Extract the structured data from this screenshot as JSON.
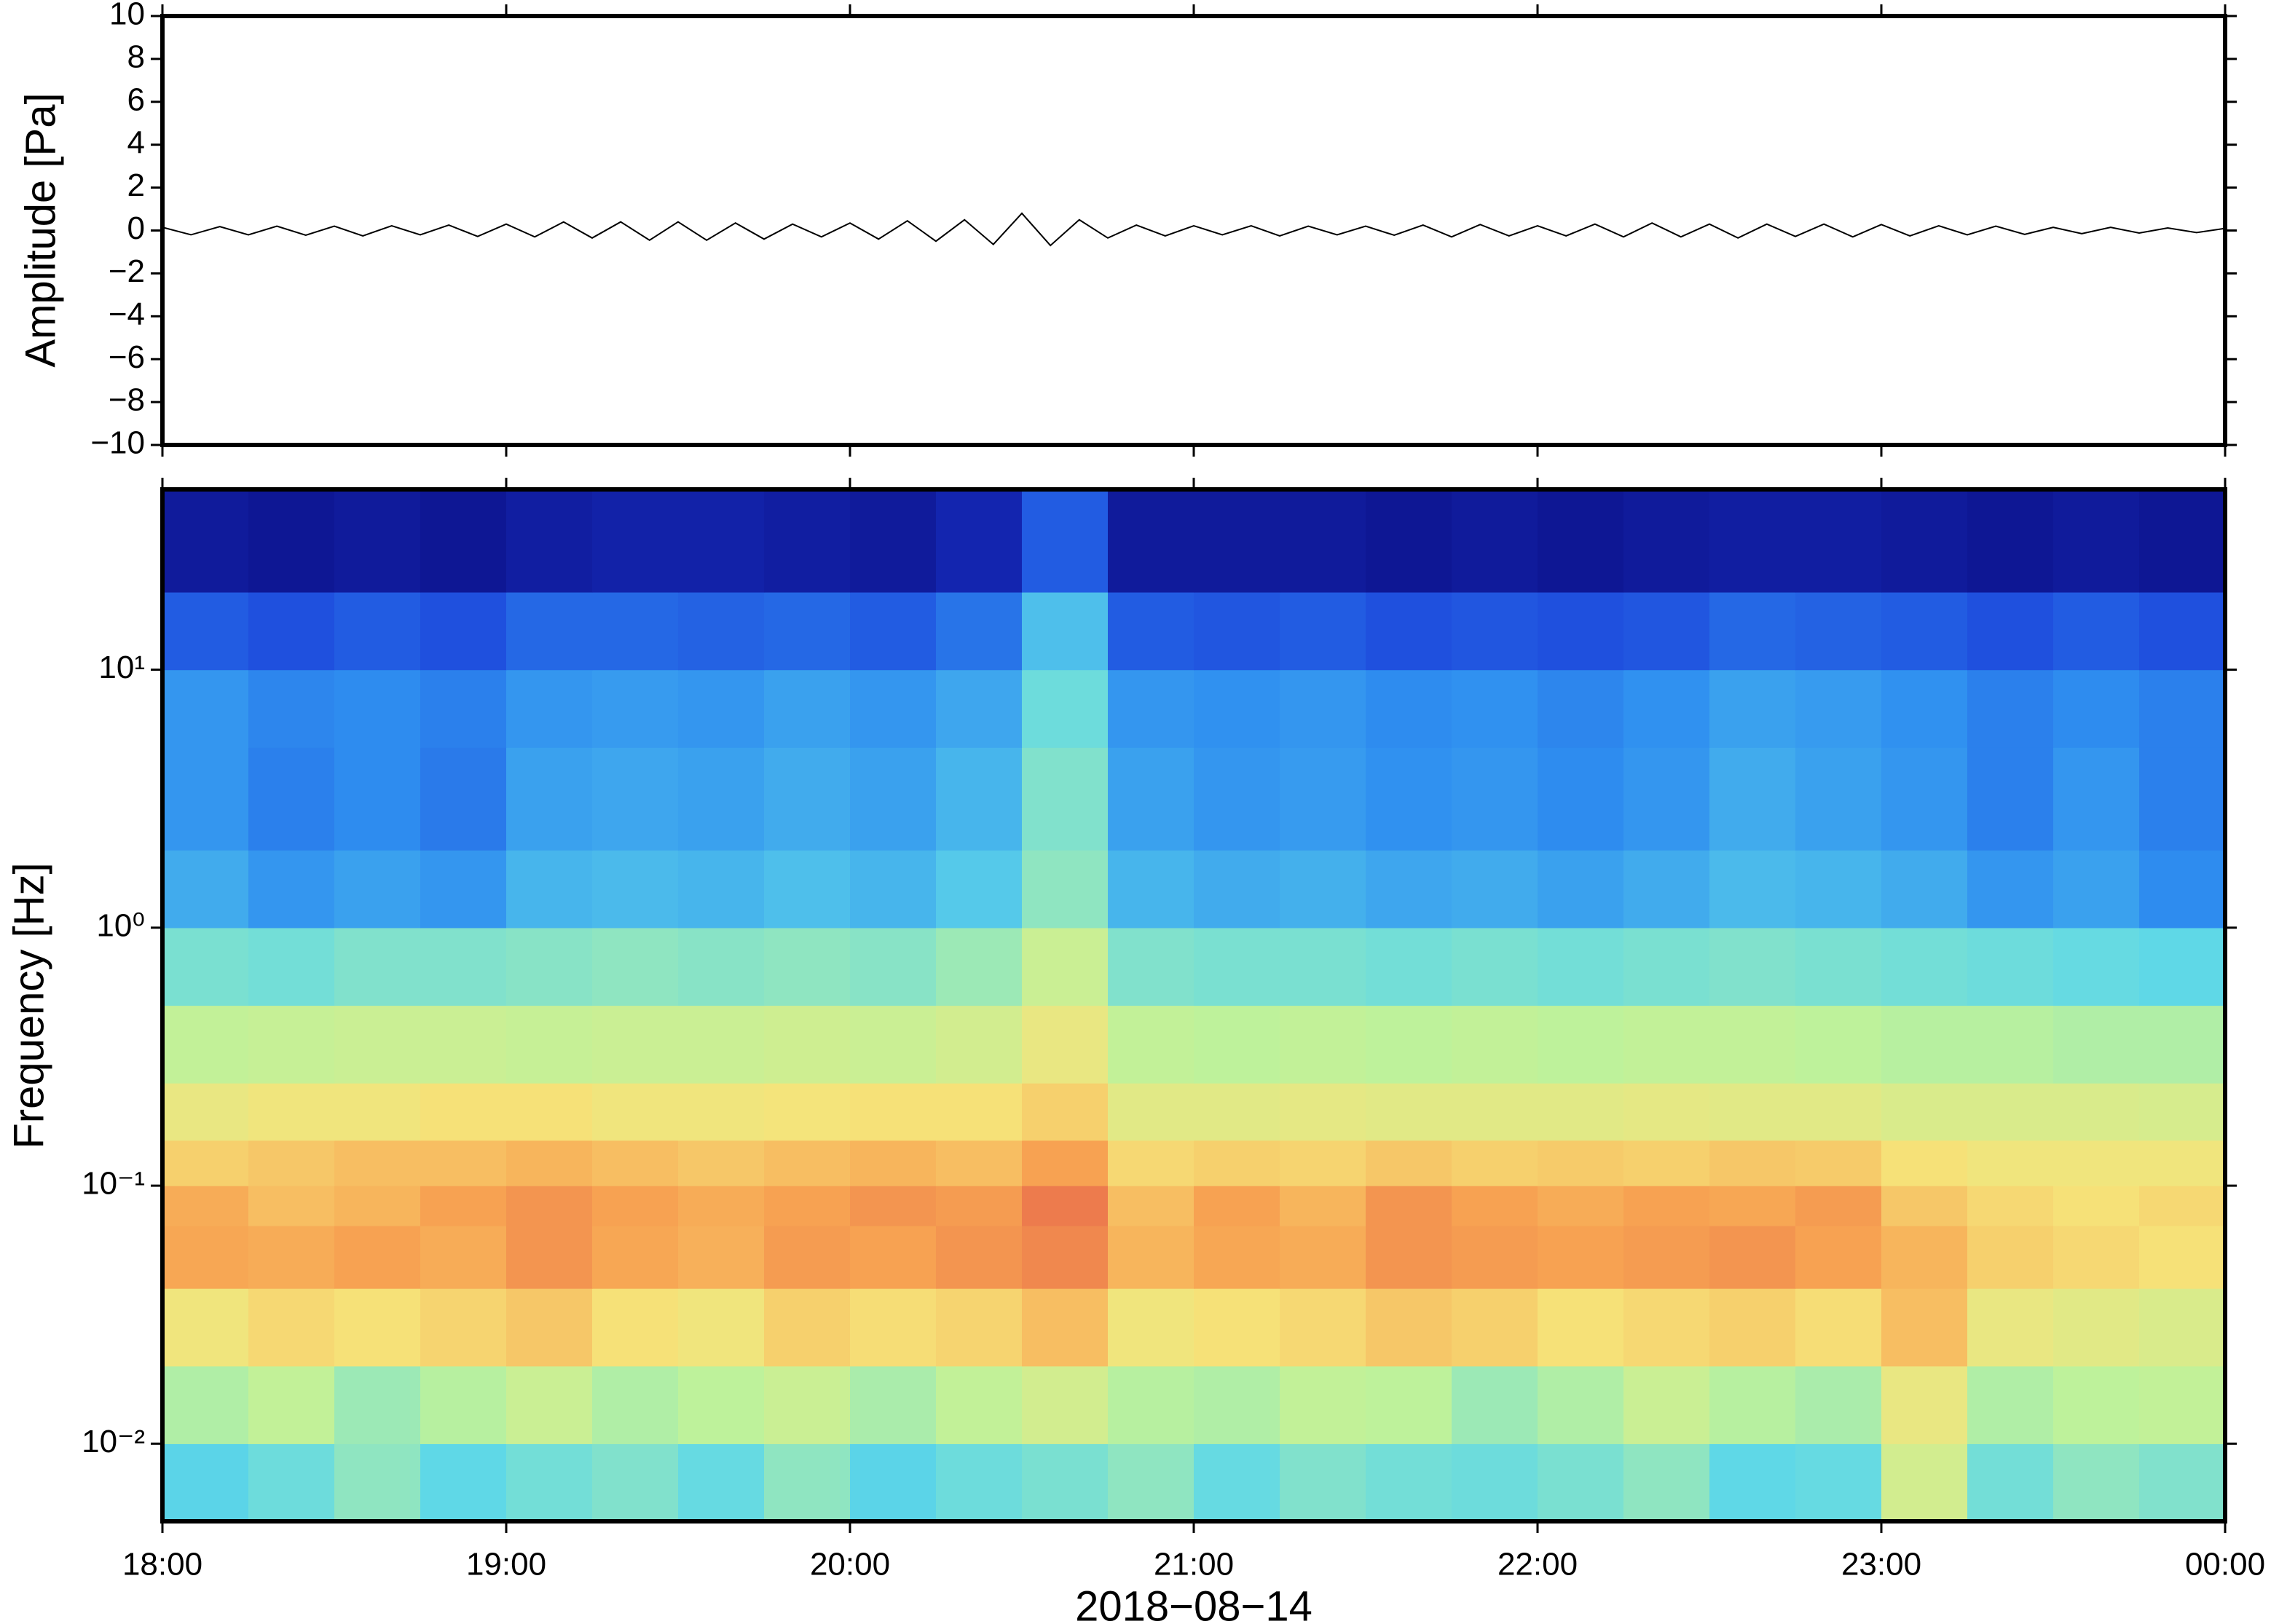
{
  "chart_data": [
    {
      "type": "line",
      "ylabel": "Amplitude [Pa]",
      "color": "#000000",
      "xlim": [
        18,
        24
      ],
      "xticks": [
        18,
        19,
        20,
        21,
        22,
        23,
        24
      ],
      "ylim": [
        -10,
        10
      ],
      "yticks": [
        {
          "value": -10,
          "label": "−10"
        },
        {
          "value": -8,
          "label": "−8"
        },
        {
          "value": -6,
          "label": "−6"
        },
        {
          "value": -4,
          "label": "−4"
        },
        {
          "value": -2,
          "label": "−2"
        },
        0,
        2,
        4,
        6,
        8,
        10
      ],
      "x": [
        18,
        18.083,
        18.167,
        18.25,
        18.333,
        18.417,
        18.5,
        18.583,
        18.667,
        18.75,
        18.833,
        18.917,
        19,
        19.083,
        19.167,
        19.25,
        19.333,
        19.417,
        19.5,
        19.583,
        19.667,
        19.75,
        19.833,
        19.917,
        20,
        20.083,
        20.167,
        20.25,
        20.333,
        20.417,
        20.5,
        20.583,
        20.667,
        20.75,
        20.833,
        20.917,
        21,
        21.083,
        21.167,
        21.25,
        21.333,
        21.417,
        21.5,
        21.583,
        21.667,
        21.75,
        21.833,
        21.917,
        22,
        22.083,
        22.167,
        22.25,
        22.333,
        22.417,
        22.5,
        22.583,
        22.667,
        22.75,
        22.833,
        22.917,
        23,
        23.083,
        23.167,
        23.25,
        23.333,
        23.417,
        23.5,
        23.583,
        23.667,
        23.75,
        23.833,
        23.917,
        24
      ],
      "values": [
        0.15,
        -0.2,
        0.18,
        -0.2,
        0.2,
        -0.22,
        0.2,
        -0.25,
        0.22,
        -0.2,
        0.25,
        -0.28,
        0.3,
        -0.3,
        0.4,
        -0.35,
        0.4,
        -0.45,
        0.4,
        -0.45,
        0.35,
        -0.4,
        0.3,
        -0.3,
        0.35,
        -0.4,
        0.45,
        -0.5,
        0.5,
        -0.65,
        0.8,
        -0.7,
        0.5,
        -0.35,
        0.25,
        -0.25,
        0.22,
        -0.2,
        0.22,
        -0.25,
        0.2,
        -0.2,
        0.2,
        -0.22,
        0.25,
        -0.3,
        0.28,
        -0.25,
        0.22,
        -0.25,
        0.3,
        -0.3,
        0.35,
        -0.3,
        0.3,
        -0.35,
        0.3,
        -0.28,
        0.3,
        -0.3,
        0.28,
        -0.25,
        0.22,
        -0.2,
        0.2,
        -0.18,
        0.15,
        -0.15,
        0.15,
        -0.12,
        0.12,
        -0.1,
        0.1
      ]
    },
    {
      "type": "heatmap",
      "ylabel": "Frequency [Hz]",
      "xlabel": "2018−08−14",
      "log_y": true,
      "colormap": [
        "#0a0a7a",
        "#1a3ad8",
        "#2f8ff0",
        "#5ed8e8",
        "#bff29a",
        "#f6e47a",
        "#f7a452",
        "#e04646"
      ],
      "xlim": [
        18,
        24
      ],
      "xticks": [
        {
          "value": 18,
          "label": "18:00"
        },
        {
          "value": 19,
          "label": "19:00"
        },
        {
          "value": 20,
          "label": "20:00"
        },
        {
          "value": 21,
          "label": "21:00"
        },
        {
          "value": 22,
          "label": "22:00"
        },
        {
          "value": 23,
          "label": "23:00"
        },
        {
          "value": 24,
          "label": "00:00"
        }
      ],
      "ylim": [
        0.005,
        50
      ],
      "yticks": [
        {
          "value": 0.01,
          "label": "10⁻²"
        },
        {
          "value": 0.1,
          "label": "10⁻¹"
        },
        {
          "value": 1,
          "label": "10⁰"
        },
        {
          "value": 10,
          "label": "10¹"
        }
      ],
      "x": [
        18,
        18.25,
        18.5,
        18.75,
        19,
        19.25,
        19.5,
        19.75,
        20,
        20.25,
        20.5,
        20.75,
        21,
        21.25,
        21.5,
        21.75,
        22,
        22.25,
        22.5,
        22.75,
        23,
        23.25,
        23.5,
        23.75,
        24
      ],
      "y": [
        0.005,
        0.01,
        0.02,
        0.04,
        0.07,
        0.1,
        0.15,
        0.25,
        0.5,
        1,
        2,
        5,
        10,
        20,
        50
      ],
      "z": [
        [
          0.42,
          0.45,
          0.5,
          0.43,
          0.46,
          0.48,
          0.44,
          0.5,
          0.42,
          0.45,
          0.47,
          0.5,
          0.44,
          0.48,
          0.46,
          0.45,
          0.47,
          0.5,
          0.43,
          0.44,
          0.62,
          0.46,
          0.5,
          0.48
        ],
        [
          0.55,
          0.58,
          0.52,
          0.56,
          0.6,
          0.55,
          0.57,
          0.6,
          0.54,
          0.58,
          0.62,
          0.56,
          0.55,
          0.58,
          0.57,
          0.52,
          0.55,
          0.6,
          0.56,
          0.54,
          0.68,
          0.55,
          0.57,
          0.58
        ],
        [
          0.7,
          0.74,
          0.72,
          0.75,
          0.78,
          0.72,
          0.7,
          0.76,
          0.73,
          0.75,
          0.8,
          0.7,
          0.72,
          0.74,
          0.78,
          0.76,
          0.72,
          0.74,
          0.76,
          0.73,
          0.8,
          0.68,
          0.66,
          0.64
        ],
        [
          0.85,
          0.84,
          0.86,
          0.84,
          0.88,
          0.85,
          0.83,
          0.87,
          0.86,
          0.88,
          0.9,
          0.82,
          0.85,
          0.84,
          0.88,
          0.87,
          0.86,
          0.87,
          0.88,
          0.86,
          0.82,
          0.76,
          0.74,
          0.72
        ],
        [
          0.84,
          0.8,
          0.82,
          0.86,
          0.88,
          0.86,
          0.84,
          0.86,
          0.88,
          0.87,
          0.92,
          0.8,
          0.86,
          0.82,
          0.88,
          0.86,
          0.84,
          0.86,
          0.85,
          0.87,
          0.78,
          0.74,
          0.72,
          0.74
        ],
        [
          0.76,
          0.78,
          0.8,
          0.8,
          0.82,
          0.8,
          0.78,
          0.8,
          0.82,
          0.8,
          0.86,
          0.74,
          0.76,
          0.75,
          0.78,
          0.76,
          0.77,
          0.76,
          0.78,
          0.77,
          0.72,
          0.7,
          0.7,
          0.7
        ],
        [
          0.68,
          0.7,
          0.7,
          0.72,
          0.72,
          0.7,
          0.7,
          0.71,
          0.72,
          0.72,
          0.76,
          0.66,
          0.66,
          0.67,
          0.66,
          0.66,
          0.66,
          0.67,
          0.66,
          0.66,
          0.64,
          0.64,
          0.64,
          0.63
        ],
        [
          0.58,
          0.59,
          0.6,
          0.6,
          0.59,
          0.6,
          0.6,
          0.61,
          0.6,
          0.62,
          0.68,
          0.58,
          0.57,
          0.58,
          0.57,
          0.58,
          0.57,
          0.58,
          0.58,
          0.57,
          0.56,
          0.56,
          0.55,
          0.55
        ],
        [
          0.47,
          0.46,
          0.48,
          0.48,
          0.49,
          0.5,
          0.49,
          0.5,
          0.49,
          0.52,
          0.6,
          0.48,
          0.47,
          0.47,
          0.46,
          0.47,
          0.46,
          0.47,
          0.48,
          0.47,
          0.46,
          0.45,
          0.44,
          0.43
        ],
        [
          0.34,
          0.3,
          0.32,
          0.3,
          0.36,
          0.37,
          0.36,
          0.38,
          0.36,
          0.4,
          0.5,
          0.36,
          0.34,
          0.35,
          0.33,
          0.34,
          0.32,
          0.34,
          0.37,
          0.36,
          0.34,
          0.3,
          0.32,
          0.28
        ],
        [
          0.3,
          0.26,
          0.28,
          0.25,
          0.32,
          0.33,
          0.32,
          0.34,
          0.32,
          0.36,
          0.48,
          0.32,
          0.3,
          0.31,
          0.29,
          0.3,
          0.28,
          0.3,
          0.34,
          0.32,
          0.3,
          0.26,
          0.3,
          0.26
        ],
        [
          0.3,
          0.27,
          0.28,
          0.26,
          0.3,
          0.31,
          0.3,
          0.32,
          0.3,
          0.33,
          0.45,
          0.3,
          0.29,
          0.3,
          0.28,
          0.29,
          0.27,
          0.29,
          0.32,
          0.31,
          0.29,
          0.26,
          0.28,
          0.26
        ],
        [
          0.2,
          0.18,
          0.2,
          0.18,
          0.22,
          0.22,
          0.21,
          0.22,
          0.2,
          0.24,
          0.38,
          0.2,
          0.19,
          0.2,
          0.18,
          0.19,
          0.18,
          0.19,
          0.22,
          0.21,
          0.2,
          0.18,
          0.2,
          0.18
        ],
        [
          0.05,
          0.04,
          0.05,
          0.04,
          0.06,
          0.07,
          0.07,
          0.06,
          0.05,
          0.08,
          0.2,
          0.05,
          0.05,
          0.05,
          0.04,
          0.05,
          0.04,
          0.05,
          0.06,
          0.06,
          0.05,
          0.04,
          0.05,
          0.04
        ]
      ]
    }
  ]
}
